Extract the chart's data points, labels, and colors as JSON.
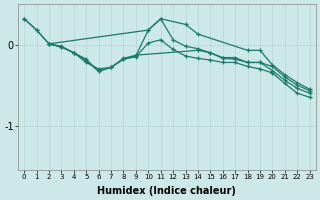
{
  "background_color": "#cde8e8",
  "line_color": "#1a7a6a",
  "grid_color": "#b8d8d8",
  "xlabel": "Humidex (Indice chaleur)",
  "ytick_labels": [
    "0",
    "-1"
  ],
  "ytick_vals": [
    0,
    -1
  ],
  "xlim": [
    -0.5,
    23.5
  ],
  "ylim": [
    -1.55,
    0.5
  ],
  "figsize": [
    3.2,
    2.0
  ],
  "dpi": 100,
  "series": [
    {
      "x": [
        0,
        1,
        2,
        10,
        11,
        13,
        14,
        18,
        19,
        20,
        21,
        22,
        23
      ],
      "y": [
        0.32,
        0.18,
        0.01,
        0.18,
        0.32,
        0.25,
        0.13,
        -0.07,
        -0.07,
        -0.25,
        -0.37,
        -0.47,
        -0.55
      ]
    },
    {
      "x": [
        0,
        1,
        2,
        3,
        4,
        5,
        6,
        7,
        8,
        9,
        10,
        11,
        12,
        13,
        14,
        15,
        16,
        17,
        18,
        19,
        20,
        21,
        22,
        23
      ],
      "y": [
        0.32,
        0.18,
        0.01,
        -0.02,
        -0.1,
        -0.22,
        -0.3,
        -0.28,
        -0.18,
        -0.14,
        0.18,
        0.32,
        0.06,
        -0.02,
        -0.05,
        -0.1,
        -0.16,
        -0.16,
        -0.22,
        -0.22,
        -0.27,
        -0.4,
        -0.5,
        -0.57
      ]
    },
    {
      "x": [
        2,
        3,
        4,
        5,
        6,
        7,
        8,
        9,
        14,
        15,
        16,
        17,
        18,
        19,
        20,
        21,
        22,
        23
      ],
      "y": [
        0.01,
        -0.03,
        -0.1,
        -0.2,
        -0.33,
        -0.28,
        -0.17,
        -0.13,
        -0.07,
        -0.1,
        -0.17,
        -0.18,
        -0.22,
        -0.22,
        -0.32,
        -0.44,
        -0.54,
        -0.6
      ]
    },
    {
      "x": [
        2,
        3,
        4,
        5,
        6,
        7,
        8,
        9,
        10,
        11,
        12,
        13,
        14,
        15,
        16,
        17,
        18,
        19,
        20,
        21,
        22,
        23
      ],
      "y": [
        0.01,
        -0.03,
        -0.1,
        -0.18,
        -0.33,
        -0.28,
        -0.18,
        -0.15,
        0.02,
        0.06,
        -0.06,
        -0.14,
        -0.17,
        -0.19,
        -0.22,
        -0.22,
        -0.27,
        -0.3,
        -0.35,
        -0.48,
        -0.6,
        -0.65
      ]
    }
  ]
}
